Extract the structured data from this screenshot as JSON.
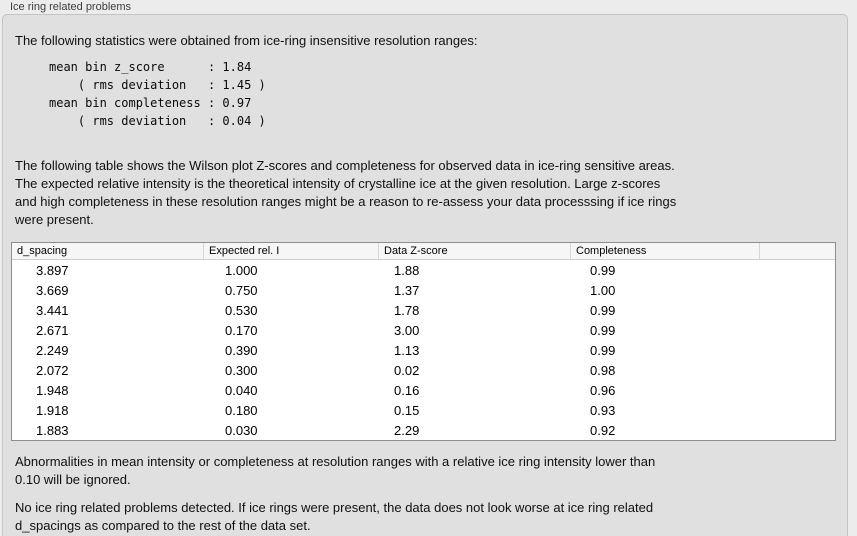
{
  "panel": {
    "title": "Ice ring related problems"
  },
  "intro_text": "The following statistics were obtained from ice-ring insensitive resolution ranges:",
  "stats_block": "mean bin z_score      : 1.84\n    ( rms deviation   : 1.45 )\nmean bin completeness : 0.97\n    ( rms deviation   : 0.04 )",
  "stats": {
    "mean_bin_z_score": "1.84",
    "z_score_rms_deviation": "1.45",
    "mean_bin_completeness": "0.97",
    "completeness_rms_deviation": "0.04"
  },
  "table_intro": "The following table shows the Wilson plot Z-scores and completeness for observed data in ice-ring sensitive areas.\nThe expected relative intensity is the theoretical intensity of crystalline ice at the given resolution. Large z-scores\nand high completeness in these resolution ranges might be a reason to re-assess your data processsing if ice rings\nwere present.",
  "table": {
    "columns": [
      "d_spacing",
      "Expected rel. I",
      "Data Z-score",
      "Completeness",
      ""
    ],
    "rows": [
      [
        "3.897",
        "1.000",
        "1.88",
        "0.99"
      ],
      [
        "3.669",
        "0.750",
        "1.37",
        "1.00"
      ],
      [
        "3.441",
        "0.530",
        "1.78",
        "0.99"
      ],
      [
        "2.671",
        "0.170",
        "3.00",
        "0.99"
      ],
      [
        "2.249",
        "0.390",
        "1.13",
        "0.99"
      ],
      [
        "2.072",
        "0.300",
        "0.02",
        "0.98"
      ],
      [
        "1.948",
        "0.040",
        "0.16",
        "0.96"
      ],
      [
        "1.918",
        "0.180",
        "0.15",
        "0.93"
      ],
      [
        "1.883",
        "0.030",
        "2.29",
        "0.92"
      ]
    ]
  },
  "note_text": "Abnormalities in mean intensity or completeness at resolution ranges with a relative ice ring intensity lower than\n0.10 will be ignored.",
  "conclusion_text": "No ice ring related problems detected. If ice rings were present, the data does not look worse at ice ring related\nd_spacings as compared to the rest of the data set.",
  "colors": {
    "page_background": "#ececec",
    "panel_background": "#e0e0e0",
    "panel_border": "#c3c3c3",
    "table_border": "#8e8e8e",
    "table_header_background": "#f6f6f6",
    "text": "#101010"
  }
}
